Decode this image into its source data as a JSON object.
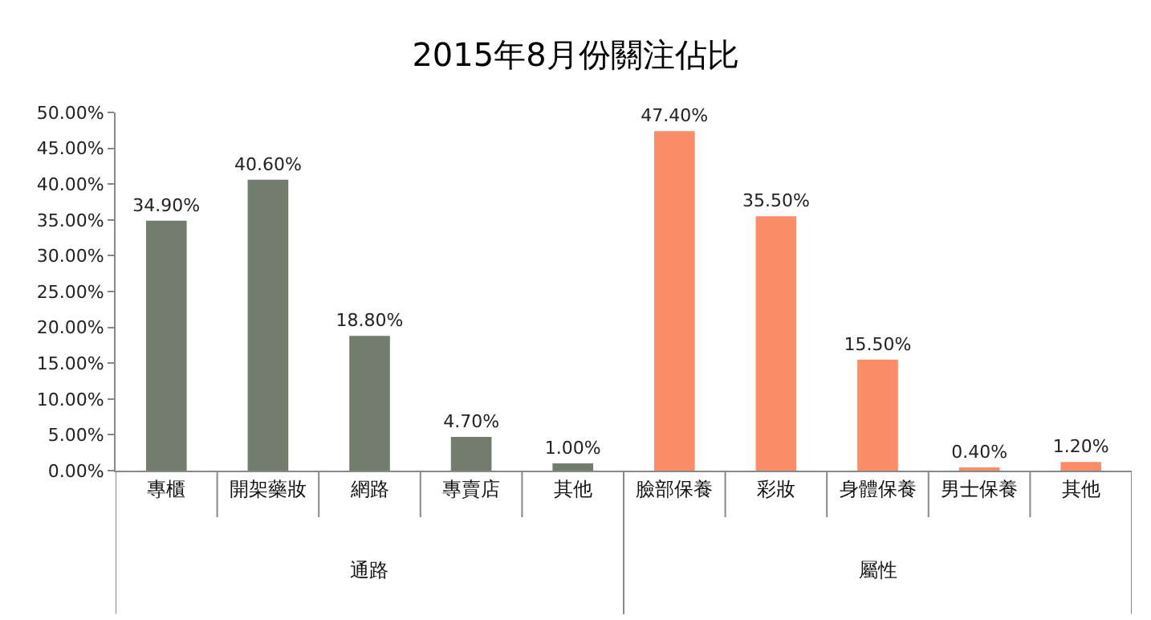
{
  "chart_data": {
    "type": "bar",
    "title": "2015年8月份關注佔比",
    "categories": [
      "專櫃",
      "開架藥妝",
      "網路",
      "專賣店",
      "其他",
      "臉部保養",
      "彩妝",
      "身體保養",
      "男士保養",
      "其他"
    ],
    "values": [
      34.9,
      40.6,
      18.8,
      4.7,
      1.0,
      47.4,
      35.5,
      15.5,
      0.4,
      1.2
    ],
    "colors": [
      "#737d6e",
      "#737d6e",
      "#737d6e",
      "#737d6e",
      "#737d6e",
      "#f98d6a",
      "#f98d6a",
      "#f98d6a",
      "#f98d6a",
      "#f98d6a"
    ],
    "value_labels": [
      "34.90%",
      "40.60%",
      "18.80%",
      "4.70%",
      "1.00%",
      "47.40%",
      "35.50%",
      "15.50%",
      "0.40%",
      "1.20%"
    ],
    "annotations": [
      "通路",
      "屬性"
    ],
    "ylim": [
      0,
      50
    ],
    "yticks": [
      {
        "value": 0,
        "label": "0.00%"
      },
      {
        "value": 5,
        "label": "5.00%"
      },
      {
        "value": 10,
        "label": "10.00%"
      },
      {
        "value": 15,
        "label": "15.00%"
      },
      {
        "value": 20,
        "label": "20.00%"
      },
      {
        "value": 25,
        "label": "25.00%"
      },
      {
        "value": 30,
        "label": "30.00%"
      },
      {
        "value": 35,
        "label": "35.00%"
      },
      {
        "value": 40,
        "label": "40.00%"
      },
      {
        "value": 45,
        "label": "45.00%"
      },
      {
        "value": 50,
        "label": "50.00%"
      }
    ],
    "legend": false
  }
}
